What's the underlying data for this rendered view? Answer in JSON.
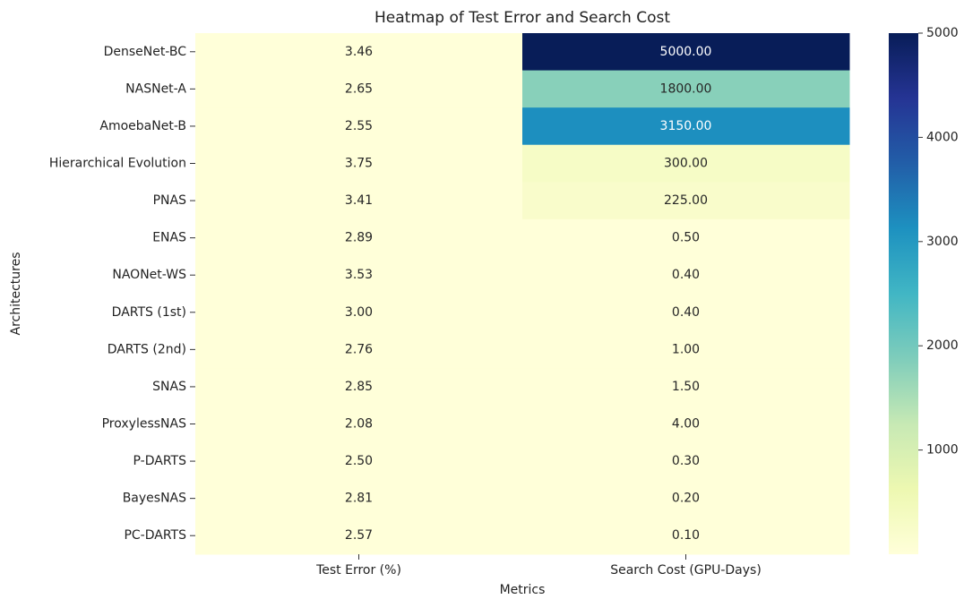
{
  "chart_data": {
    "type": "heatmap",
    "title": "Heatmap of Test Error and Search Cost",
    "xlabel": "Metrics",
    "ylabel": "Architectures",
    "columns": [
      "Test Error (%)",
      "Search Cost (GPU-Days)"
    ],
    "rows": [
      "DenseNet-BC",
      "NASNet-A",
      "AmoebaNet-B",
      "Hierarchical Evolution",
      "PNAS",
      "ENAS",
      "NAONet-WS",
      "DARTS (1st)",
      "DARTS (2nd)",
      "SNAS",
      "ProxylessNAS",
      "P-DARTS",
      "BayesNAS",
      "PC-DARTS"
    ],
    "values": [
      [
        3.46,
        5000
      ],
      [
        2.65,
        1800
      ],
      [
        2.55,
        3150
      ],
      [
        3.75,
        300
      ],
      [
        3.41,
        225
      ],
      [
        2.89,
        0.5
      ],
      [
        3.53,
        0.4
      ],
      [
        3.0,
        0.4
      ],
      [
        2.76,
        1.0
      ],
      [
        2.85,
        1.5
      ],
      [
        2.08,
        4.0
      ],
      [
        2.5,
        0.3
      ],
      [
        2.81,
        0.2
      ],
      [
        2.57,
        0.1
      ]
    ],
    "value_labels": [
      [
        "3.46",
        "5000.00"
      ],
      [
        "2.65",
        "1800.00"
      ],
      [
        "2.55",
        "3150.00"
      ],
      [
        "3.75",
        "300.00"
      ],
      [
        "3.41",
        "225.00"
      ],
      [
        "2.89",
        "0.50"
      ],
      [
        "3.53",
        "0.40"
      ],
      [
        "3.00",
        "0.40"
      ],
      [
        "2.76",
        "1.00"
      ],
      [
        "2.85",
        "1.50"
      ],
      [
        "2.08",
        "4.00"
      ],
      [
        "2.50",
        "0.30"
      ],
      [
        "2.81",
        "0.20"
      ],
      [
        "2.57",
        "0.10"
      ]
    ],
    "clim": [
      0.1,
      5000
    ],
    "cticks": [
      1000,
      2000,
      3000,
      4000,
      5000
    ],
    "colormap": [
      "#ffffd9",
      "#edf8b1",
      "#c7e9b4",
      "#7fcdbb",
      "#41b6c4",
      "#1d91c0",
      "#225ea8",
      "#253494",
      "#081d58"
    ]
  }
}
